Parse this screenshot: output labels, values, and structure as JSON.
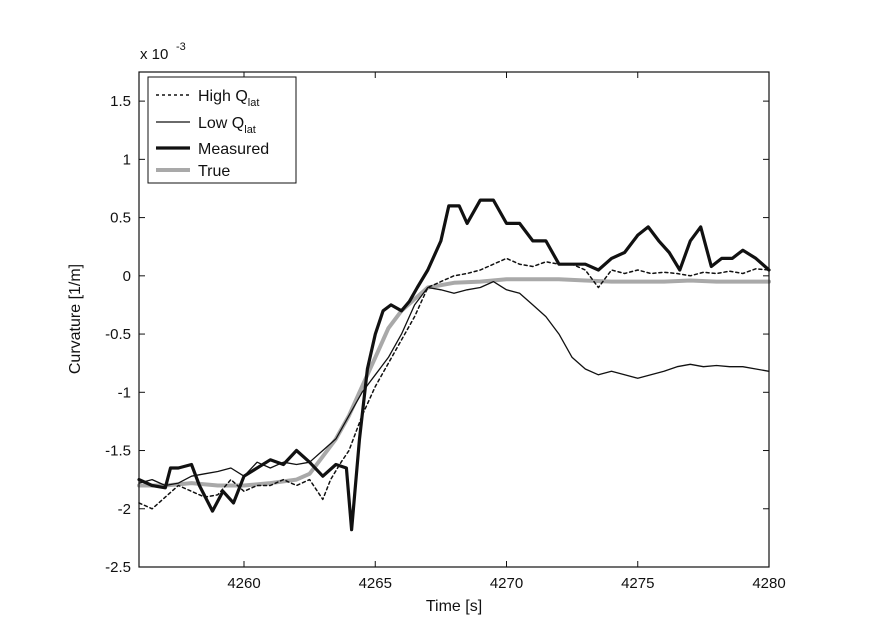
{
  "chart_data": {
    "type": "line",
    "xlabel": "Time [s]",
    "ylabel": "Curvature [1/m]",
    "exponent_base": "x 10",
    "exponent_power": "-3",
    "xlim": [
      4256,
      4280
    ],
    "ylim": [
      -2.5,
      1.75
    ],
    "xticks": [
      4260,
      4265,
      4270,
      4275,
      4280
    ],
    "yticks": [
      -2.5,
      -2,
      -1.5,
      -1,
      -0.5,
      0,
      0.5,
      1,
      1.5
    ],
    "ytick_labels": [
      "-2.5",
      "-2",
      "-1.5",
      "-1",
      "-0.5",
      "0",
      "0.5",
      "1",
      "1.5"
    ],
    "legend_position": "top-left",
    "series": [
      {
        "name": "High Q",
        "subscript": "lat",
        "style": "dotted",
        "color": "#111111",
        "points": [
          [
            4256,
            -1.95
          ],
          [
            4256.5,
            -2.0
          ],
          [
            4257,
            -1.9
          ],
          [
            4257.5,
            -1.8
          ],
          [
            4258,
            -1.85
          ],
          [
            4258.5,
            -1.9
          ],
          [
            4259,
            -1.88
          ],
          [
            4259.5,
            -1.75
          ],
          [
            4260,
            -1.85
          ],
          [
            4260.5,
            -1.8
          ],
          [
            4261,
            -1.8
          ],
          [
            4261.5,
            -1.75
          ],
          [
            4262,
            -1.8
          ],
          [
            4262.5,
            -1.75
          ],
          [
            4263,
            -1.92
          ],
          [
            4263.3,
            -1.75
          ],
          [
            4263.7,
            -1.6
          ],
          [
            4264,
            -1.5
          ],
          [
            4264.5,
            -1.2
          ],
          [
            4265,
            -0.95
          ],
          [
            4265.5,
            -0.75
          ],
          [
            4266,
            -0.55
          ],
          [
            4266.5,
            -0.35
          ],
          [
            4267,
            -0.1
          ],
          [
            4267.5,
            -0.05
          ],
          [
            4268,
            0.0
          ],
          [
            4268.5,
            0.02
          ],
          [
            4269,
            0.05
          ],
          [
            4269.5,
            0.1
          ],
          [
            4270,
            0.15
          ],
          [
            4270.5,
            0.1
          ],
          [
            4271,
            0.08
          ],
          [
            4271.5,
            0.12
          ],
          [
            4272,
            0.1
          ],
          [
            4272.5,
            0.1
          ],
          [
            4273,
            0.05
          ],
          [
            4273.5,
            -0.1
          ],
          [
            4274,
            0.05
          ],
          [
            4274.5,
            0.02
          ],
          [
            4275,
            0.05
          ],
          [
            4275.5,
            0.02
          ],
          [
            4276,
            0.03
          ],
          [
            4276.5,
            0.02
          ],
          [
            4277,
            0.0
          ],
          [
            4277.5,
            0.03
          ],
          [
            4278,
            0.02
          ],
          [
            4278.5,
            0.04
          ],
          [
            4279,
            0.02
          ],
          [
            4279.5,
            0.06
          ],
          [
            4280,
            0.05
          ]
        ]
      },
      {
        "name": "Low Q",
        "subscript": "lat",
        "style": "thin",
        "color": "#111111",
        "points": [
          [
            4256,
            -1.78
          ],
          [
            4256.5,
            -1.75
          ],
          [
            4257,
            -1.8
          ],
          [
            4257.5,
            -1.78
          ],
          [
            4258,
            -1.72
          ],
          [
            4258.5,
            -1.7
          ],
          [
            4259,
            -1.68
          ],
          [
            4259.5,
            -1.65
          ],
          [
            4260,
            -1.72
          ],
          [
            4260.5,
            -1.6
          ],
          [
            4261,
            -1.65
          ],
          [
            4261.5,
            -1.6
          ],
          [
            4262,
            -1.62
          ],
          [
            4262.5,
            -1.6
          ],
          [
            4263,
            -1.5
          ],
          [
            4263.5,
            -1.4
          ],
          [
            4264,
            -1.2
          ],
          [
            4264.5,
            -1.0
          ],
          [
            4265,
            -0.85
          ],
          [
            4265.5,
            -0.7
          ],
          [
            4266,
            -0.5
          ],
          [
            4266.5,
            -0.25
          ],
          [
            4267,
            -0.1
          ],
          [
            4267.5,
            -0.12
          ],
          [
            4268,
            -0.15
          ],
          [
            4268.5,
            -0.12
          ],
          [
            4269,
            -0.1
          ],
          [
            4269.5,
            -0.05
          ],
          [
            4270,
            -0.12
          ],
          [
            4270.5,
            -0.15
          ],
          [
            4271,
            -0.25
          ],
          [
            4271.5,
            -0.35
          ],
          [
            4272,
            -0.5
          ],
          [
            4272.5,
            -0.7
          ],
          [
            4273,
            -0.8
          ],
          [
            4273.5,
            -0.85
          ],
          [
            4274,
            -0.82
          ],
          [
            4274.5,
            -0.85
          ],
          [
            4275,
            -0.88
          ],
          [
            4275.5,
            -0.85
          ],
          [
            4276,
            -0.82
          ],
          [
            4276.5,
            -0.78
          ],
          [
            4277,
            -0.76
          ],
          [
            4277.5,
            -0.78
          ],
          [
            4278,
            -0.77
          ],
          [
            4278.5,
            -0.78
          ],
          [
            4279,
            -0.78
          ],
          [
            4279.5,
            -0.8
          ],
          [
            4280,
            -0.82
          ]
        ]
      },
      {
        "name": "Measured",
        "subscript": "",
        "style": "thick",
        "color": "#111111",
        "points": [
          [
            4256,
            -1.75
          ],
          [
            4256.5,
            -1.8
          ],
          [
            4257,
            -1.82
          ],
          [
            4257.2,
            -1.65
          ],
          [
            4257.5,
            -1.65
          ],
          [
            4258,
            -1.62
          ],
          [
            4258.3,
            -1.8
          ],
          [
            4258.8,
            -2.02
          ],
          [
            4259.2,
            -1.85
          ],
          [
            4259.6,
            -1.95
          ],
          [
            4260,
            -1.72
          ],
          [
            4260.5,
            -1.65
          ],
          [
            4261,
            -1.58
          ],
          [
            4261.5,
            -1.62
          ],
          [
            4262,
            -1.5
          ],
          [
            4262.5,
            -1.6
          ],
          [
            4263,
            -1.72
          ],
          [
            4263.5,
            -1.62
          ],
          [
            4263.9,
            -1.65
          ],
          [
            4264.1,
            -2.18
          ],
          [
            4264.4,
            -1.4
          ],
          [
            4264.7,
            -0.8
          ],
          [
            4265,
            -0.5
          ],
          [
            4265.3,
            -0.3
          ],
          [
            4265.6,
            -0.25
          ],
          [
            4266,
            -0.3
          ],
          [
            4266.3,
            -0.22
          ],
          [
            4266.6,
            -0.1
          ],
          [
            4267,
            0.05
          ],
          [
            4267.5,
            0.3
          ],
          [
            4267.8,
            0.6
          ],
          [
            4268.2,
            0.6
          ],
          [
            4268.5,
            0.45
          ],
          [
            4269,
            0.65
          ],
          [
            4269.5,
            0.65
          ],
          [
            4270,
            0.45
          ],
          [
            4270.5,
            0.45
          ],
          [
            4271,
            0.3
          ],
          [
            4271.5,
            0.3
          ],
          [
            4272,
            0.1
          ],
          [
            4272.5,
            0.1
          ],
          [
            4273,
            0.1
          ],
          [
            4273.5,
            0.05
          ],
          [
            4274,
            0.15
          ],
          [
            4274.5,
            0.2
          ],
          [
            4275,
            0.35
          ],
          [
            4275.4,
            0.42
          ],
          [
            4275.8,
            0.3
          ],
          [
            4276.2,
            0.2
          ],
          [
            4276.6,
            0.05
          ],
          [
            4277,
            0.3
          ],
          [
            4277.4,
            0.42
          ],
          [
            4277.8,
            0.08
          ],
          [
            4278.2,
            0.15
          ],
          [
            4278.6,
            0.15
          ],
          [
            4279,
            0.22
          ],
          [
            4279.5,
            0.15
          ],
          [
            4280,
            0.05
          ]
        ]
      },
      {
        "name": "True",
        "subscript": "",
        "style": "thick-gray",
        "color": "#a9a9a9",
        "points": [
          [
            4256,
            -1.8
          ],
          [
            4257,
            -1.8
          ],
          [
            4258,
            -1.78
          ],
          [
            4259,
            -1.8
          ],
          [
            4260,
            -1.8
          ],
          [
            4261,
            -1.78
          ],
          [
            4262,
            -1.75
          ],
          [
            4262.5,
            -1.7
          ],
          [
            4263,
            -1.55
          ],
          [
            4263.5,
            -1.4
          ],
          [
            4264,
            -1.2
          ],
          [
            4264.5,
            -0.95
          ],
          [
            4265,
            -0.7
          ],
          [
            4265.5,
            -0.45
          ],
          [
            4266,
            -0.3
          ],
          [
            4266.5,
            -0.2
          ],
          [
            4267,
            -0.1
          ],
          [
            4268,
            -0.06
          ],
          [
            4269,
            -0.05
          ],
          [
            4270,
            -0.03
          ],
          [
            4271,
            -0.03
          ],
          [
            4272,
            -0.03
          ],
          [
            4273,
            -0.04
          ],
          [
            4274,
            -0.05
          ],
          [
            4275,
            -0.05
          ],
          [
            4276,
            -0.05
          ],
          [
            4277,
            -0.04
          ],
          [
            4278,
            -0.05
          ],
          [
            4279,
            -0.05
          ],
          [
            4280,
            -0.05
          ]
        ]
      }
    ]
  }
}
